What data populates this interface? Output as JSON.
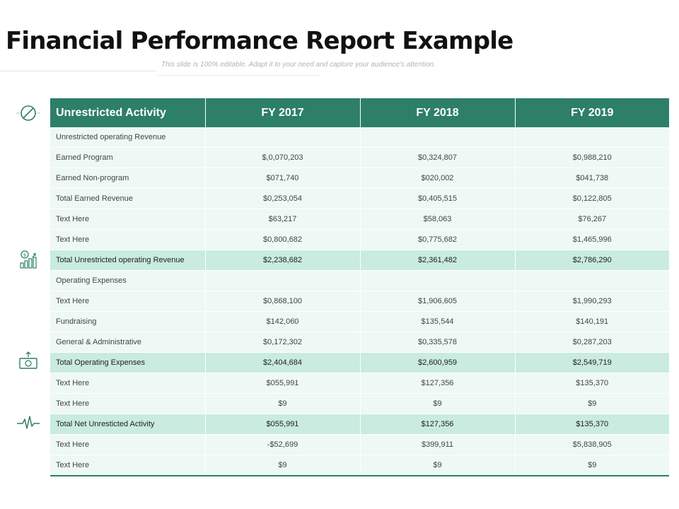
{
  "title": "Financial Performance Report Example",
  "subtitle": "This slide is 100% editable. Adapt it to your need and capture your audience's attention.",
  "colors": {
    "header_bg": "#2d7f68",
    "row_bg": "#eef8f4",
    "total_row_bg": "#c9ebe0",
    "icon_stroke": "#2d7f68"
  },
  "icons": [
    "no-sign-icon",
    "growth-chart-icon",
    "money-bill-icon",
    "heartbeat-icon"
  ],
  "table": {
    "headers": [
      "Unrestricted Activity",
      "FY 2017",
      "FY 2018",
      "FY 2019"
    ],
    "rows": [
      {
        "label": "Unrestricted operating Revenue",
        "fy2017": "",
        "fy2018": "",
        "fy2019": ""
      },
      {
        "label": "Earned Program",
        "fy2017": "$,0,070,203",
        "fy2018": "$0,324,807",
        "fy2019": "$0,988,210"
      },
      {
        "label": "Earned Non-program",
        "fy2017": "$071,740",
        "fy2018": "$020,002",
        "fy2019": "$041,738"
      },
      {
        "label": "Total Earned Revenue",
        "fy2017": "$0,253,054",
        "fy2018": "$0,405,515",
        "fy2019": "$0,122,805"
      },
      {
        "label": "Text Here",
        "fy2017": "$63,217",
        "fy2018": "$58,063",
        "fy2019": "$76,267"
      },
      {
        "label": "Text Here",
        "fy2017": "$0,800,682",
        "fy2018": "$0,775,682",
        "fy2019": "$1,465,996"
      },
      {
        "label": "Total Unrestricted operating Revenue",
        "fy2017": "$2,238,682",
        "fy2018": "$2,361,482",
        "fy2019": "$2,786,290"
      },
      {
        "label": "Operating Expenses",
        "fy2017": "",
        "fy2018": "",
        "fy2019": ""
      },
      {
        "label": "Text Here",
        "fy2017": "$0,868,100",
        "fy2018": "$1,906,605",
        "fy2019": "$1,990,293"
      },
      {
        "label": "Fundraising",
        "fy2017": "$142,060",
        "fy2018": "$135,544",
        "fy2019": "$140,191"
      },
      {
        "label": "General & Administrative",
        "fy2017": "$0,172,302",
        "fy2018": "$0,335,578",
        "fy2019": "$0,287,203"
      },
      {
        "label": "Total Operating Expenses",
        "fy2017": "$2,404,684",
        "fy2018": "$2,600,959",
        "fy2019": "$2,549,719"
      },
      {
        "label": "Text Here",
        "fy2017": "$055,991",
        "fy2018": "$127,356",
        "fy2019": "$135,370"
      },
      {
        "label": "Text Here",
        "fy2017": "$9",
        "fy2018": "$9",
        "fy2019": "$9"
      },
      {
        "label": "Total Net Unresticted Activity",
        "fy2017": "$055,991",
        "fy2018": "$127,356",
        "fy2019": "$135,370"
      },
      {
        "label": "Text Here",
        "fy2017": "-$52,699",
        "fy2018": "$399,911",
        "fy2019": "$5,838,905"
      },
      {
        "label": "Text Here",
        "fy2017": "$9",
        "fy2018": "$9",
        "fy2019": "$9"
      }
    ]
  }
}
